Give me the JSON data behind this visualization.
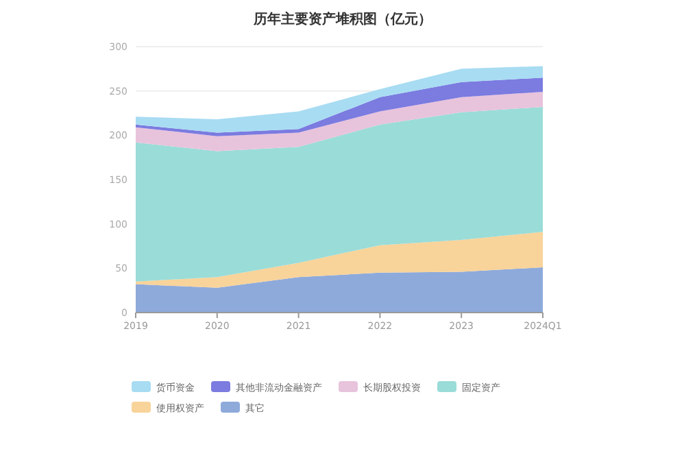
{
  "chart_data": {
    "type": "area",
    "title": "历年主要资产堆积图（亿元）",
    "categories": [
      "2019",
      "2020",
      "2021",
      "2022",
      "2023",
      "2024Q1"
    ],
    "stacked": true,
    "grid": "y",
    "legend": "bottom",
    "ylim": [
      0,
      300
    ],
    "yticks": [
      0,
      50,
      100,
      150,
      200,
      250,
      300
    ],
    "series": [
      {
        "name": "其它",
        "color": "#8eaadb",
        "values": [
          32,
          28,
          40,
          45,
          46,
          51
        ]
      },
      {
        "name": "使用权资产",
        "color": "#f8d39a",
        "values": [
          3,
          12,
          16,
          31,
          36,
          40
        ]
      },
      {
        "name": "固定资产",
        "color": "#9adcd8",
        "values": [
          157,
          142,
          131,
          136,
          144,
          141
        ]
      },
      {
        "name": "长期股权投资",
        "color": "#e8c3dc",
        "values": [
          17,
          17,
          16,
          15,
          17,
          17
        ]
      },
      {
        "name": "其他非流动金融资产",
        "color": "#7b7be0",
        "values": [
          3,
          4,
          4,
          16,
          17,
          16
        ]
      },
      {
        "name": "货币资金",
        "color": "#a8dcf2",
        "values": [
          9,
          15,
          20,
          9,
          15,
          13
        ]
      }
    ]
  }
}
